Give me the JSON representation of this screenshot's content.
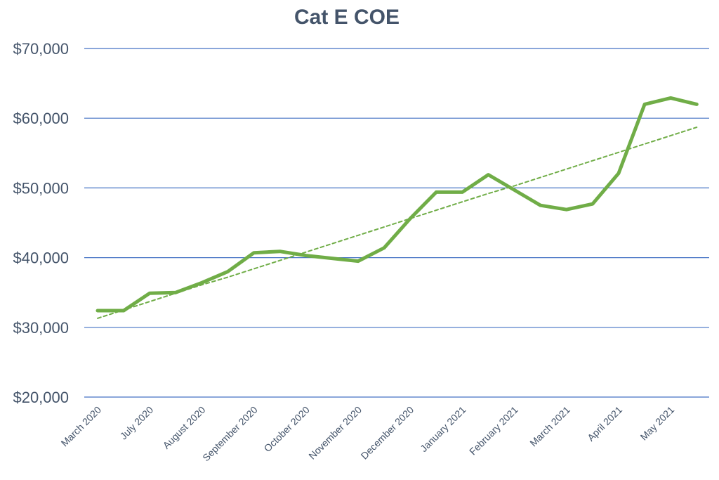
{
  "chart_data": {
    "type": "line",
    "title": "Cat E COE",
    "xlabel": "",
    "ylabel": "",
    "ylim": [
      20000,
      70000
    ],
    "yticks": [
      20000,
      30000,
      40000,
      50000,
      60000,
      70000
    ],
    "ytick_labels": [
      "$20,000",
      "$30,000",
      "$40,000",
      "$50,000",
      "$60,000",
      "$70,000"
    ],
    "x_tick_labels": [
      "March 2020",
      "July 2020",
      "August 2020",
      "September 2020",
      "October 2020",
      "November 2020",
      "December 2020",
      "January 2021",
      "February 2021",
      "March 2021",
      "April 2021",
      "May 2021"
    ],
    "x_tick_label_point_index": [
      0,
      2,
      4,
      6,
      8,
      10,
      12,
      14,
      16,
      18,
      20,
      22
    ],
    "grid": true,
    "legend": "none",
    "series": [
      {
        "values": [
          32400,
          32400,
          34900,
          35000,
          36400,
          38000,
          40700,
          40900,
          40300,
          39900,
          39500,
          41400,
          45600,
          49400,
          49400,
          51900,
          49700,
          47500,
          46900,
          47700,
          52100,
          62000,
          62900,
          62000
        ],
        "color": "#70ad47",
        "style": "solid"
      },
      {
        "trendline": "linear",
        "values": [
          31300,
          32500,
          33700,
          34900,
          36100,
          37200,
          38400,
          39600,
          40800,
          42000,
          43200,
          44400,
          45600,
          46800,
          48000,
          49200,
          50300,
          51500,
          52700,
          53900,
          55100,
          56300,
          57500,
          58700
        ],
        "color": "#70ad47",
        "style": "dashed"
      }
    ],
    "colors": {
      "grid": "#4472c4",
      "text": "#44546a"
    }
  }
}
